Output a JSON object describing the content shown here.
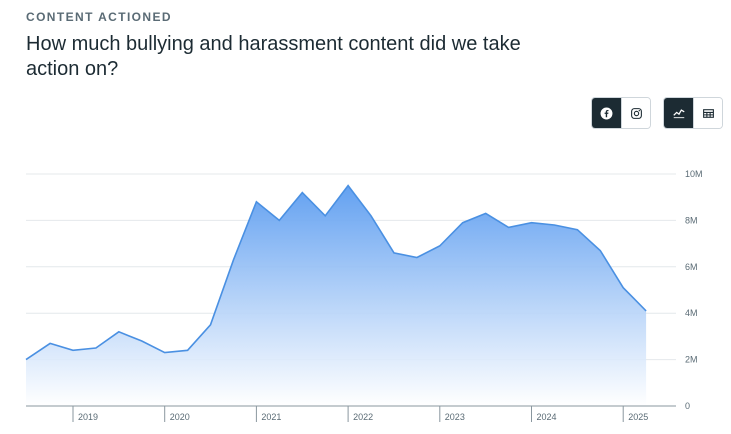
{
  "header": {
    "eyebrow": "CONTENT ACTIONED",
    "title": "How much bullying and harassment content did we take action on?"
  },
  "controls": {
    "platform": [
      {
        "icon": "facebook-icon",
        "active": true
      },
      {
        "icon": "instagram-icon",
        "active": false
      }
    ],
    "view": [
      {
        "icon": "line-chart-icon",
        "active": true
      },
      {
        "icon": "table-icon",
        "active": false
      }
    ]
  },
  "colors": {
    "line": "#4a90e2",
    "fill_top": "#5b9cf0",
    "fill_bottom": "#ffffff",
    "grid": "#e4e8eb",
    "active_btn": "#1c2b33"
  },
  "chart_data": {
    "type": "area",
    "x_ticks": [
      "2019",
      "2020",
      "2021",
      "2022",
      "2023",
      "2024",
      "2025"
    ],
    "y_ticks": [
      "0",
      "2M",
      "4M",
      "6M",
      "8M",
      "10M"
    ],
    "ylim": [
      0,
      10
    ],
    "yunit": "M",
    "grid": true,
    "series": [
      {
        "x": [
          "2018-Q3",
          "2018-Q4",
          "2019-Q1",
          "2019-Q2",
          "2019-Q3",
          "2019-Q4",
          "2020-Q1",
          "2020-Q2",
          "2020-Q3",
          "2020-Q4",
          "2021-Q1",
          "2021-Q2",
          "2021-Q3",
          "2021-Q4",
          "2022-Q1",
          "2022-Q2",
          "2022-Q3",
          "2022-Q4",
          "2023-Q1",
          "2023-Q2",
          "2023-Q3",
          "2023-Q4",
          "2024-Q1",
          "2024-Q2",
          "2024-Q3",
          "2024-Q4",
          "2025-Q1"
        ],
        "values": [
          2.0,
          2.7,
          2.4,
          2.5,
          3.2,
          2.8,
          2.3,
          2.4,
          3.5,
          6.3,
          8.8,
          8.0,
          9.2,
          8.2,
          9.5,
          8.2,
          6.6,
          6.4,
          6.9,
          7.9,
          8.3,
          7.7,
          7.9,
          7.8,
          7.6,
          6.7,
          5.1
        ]
      }
    ],
    "extra_point": {
      "x": "2025-Q1-end",
      "value": 4.1
    }
  }
}
